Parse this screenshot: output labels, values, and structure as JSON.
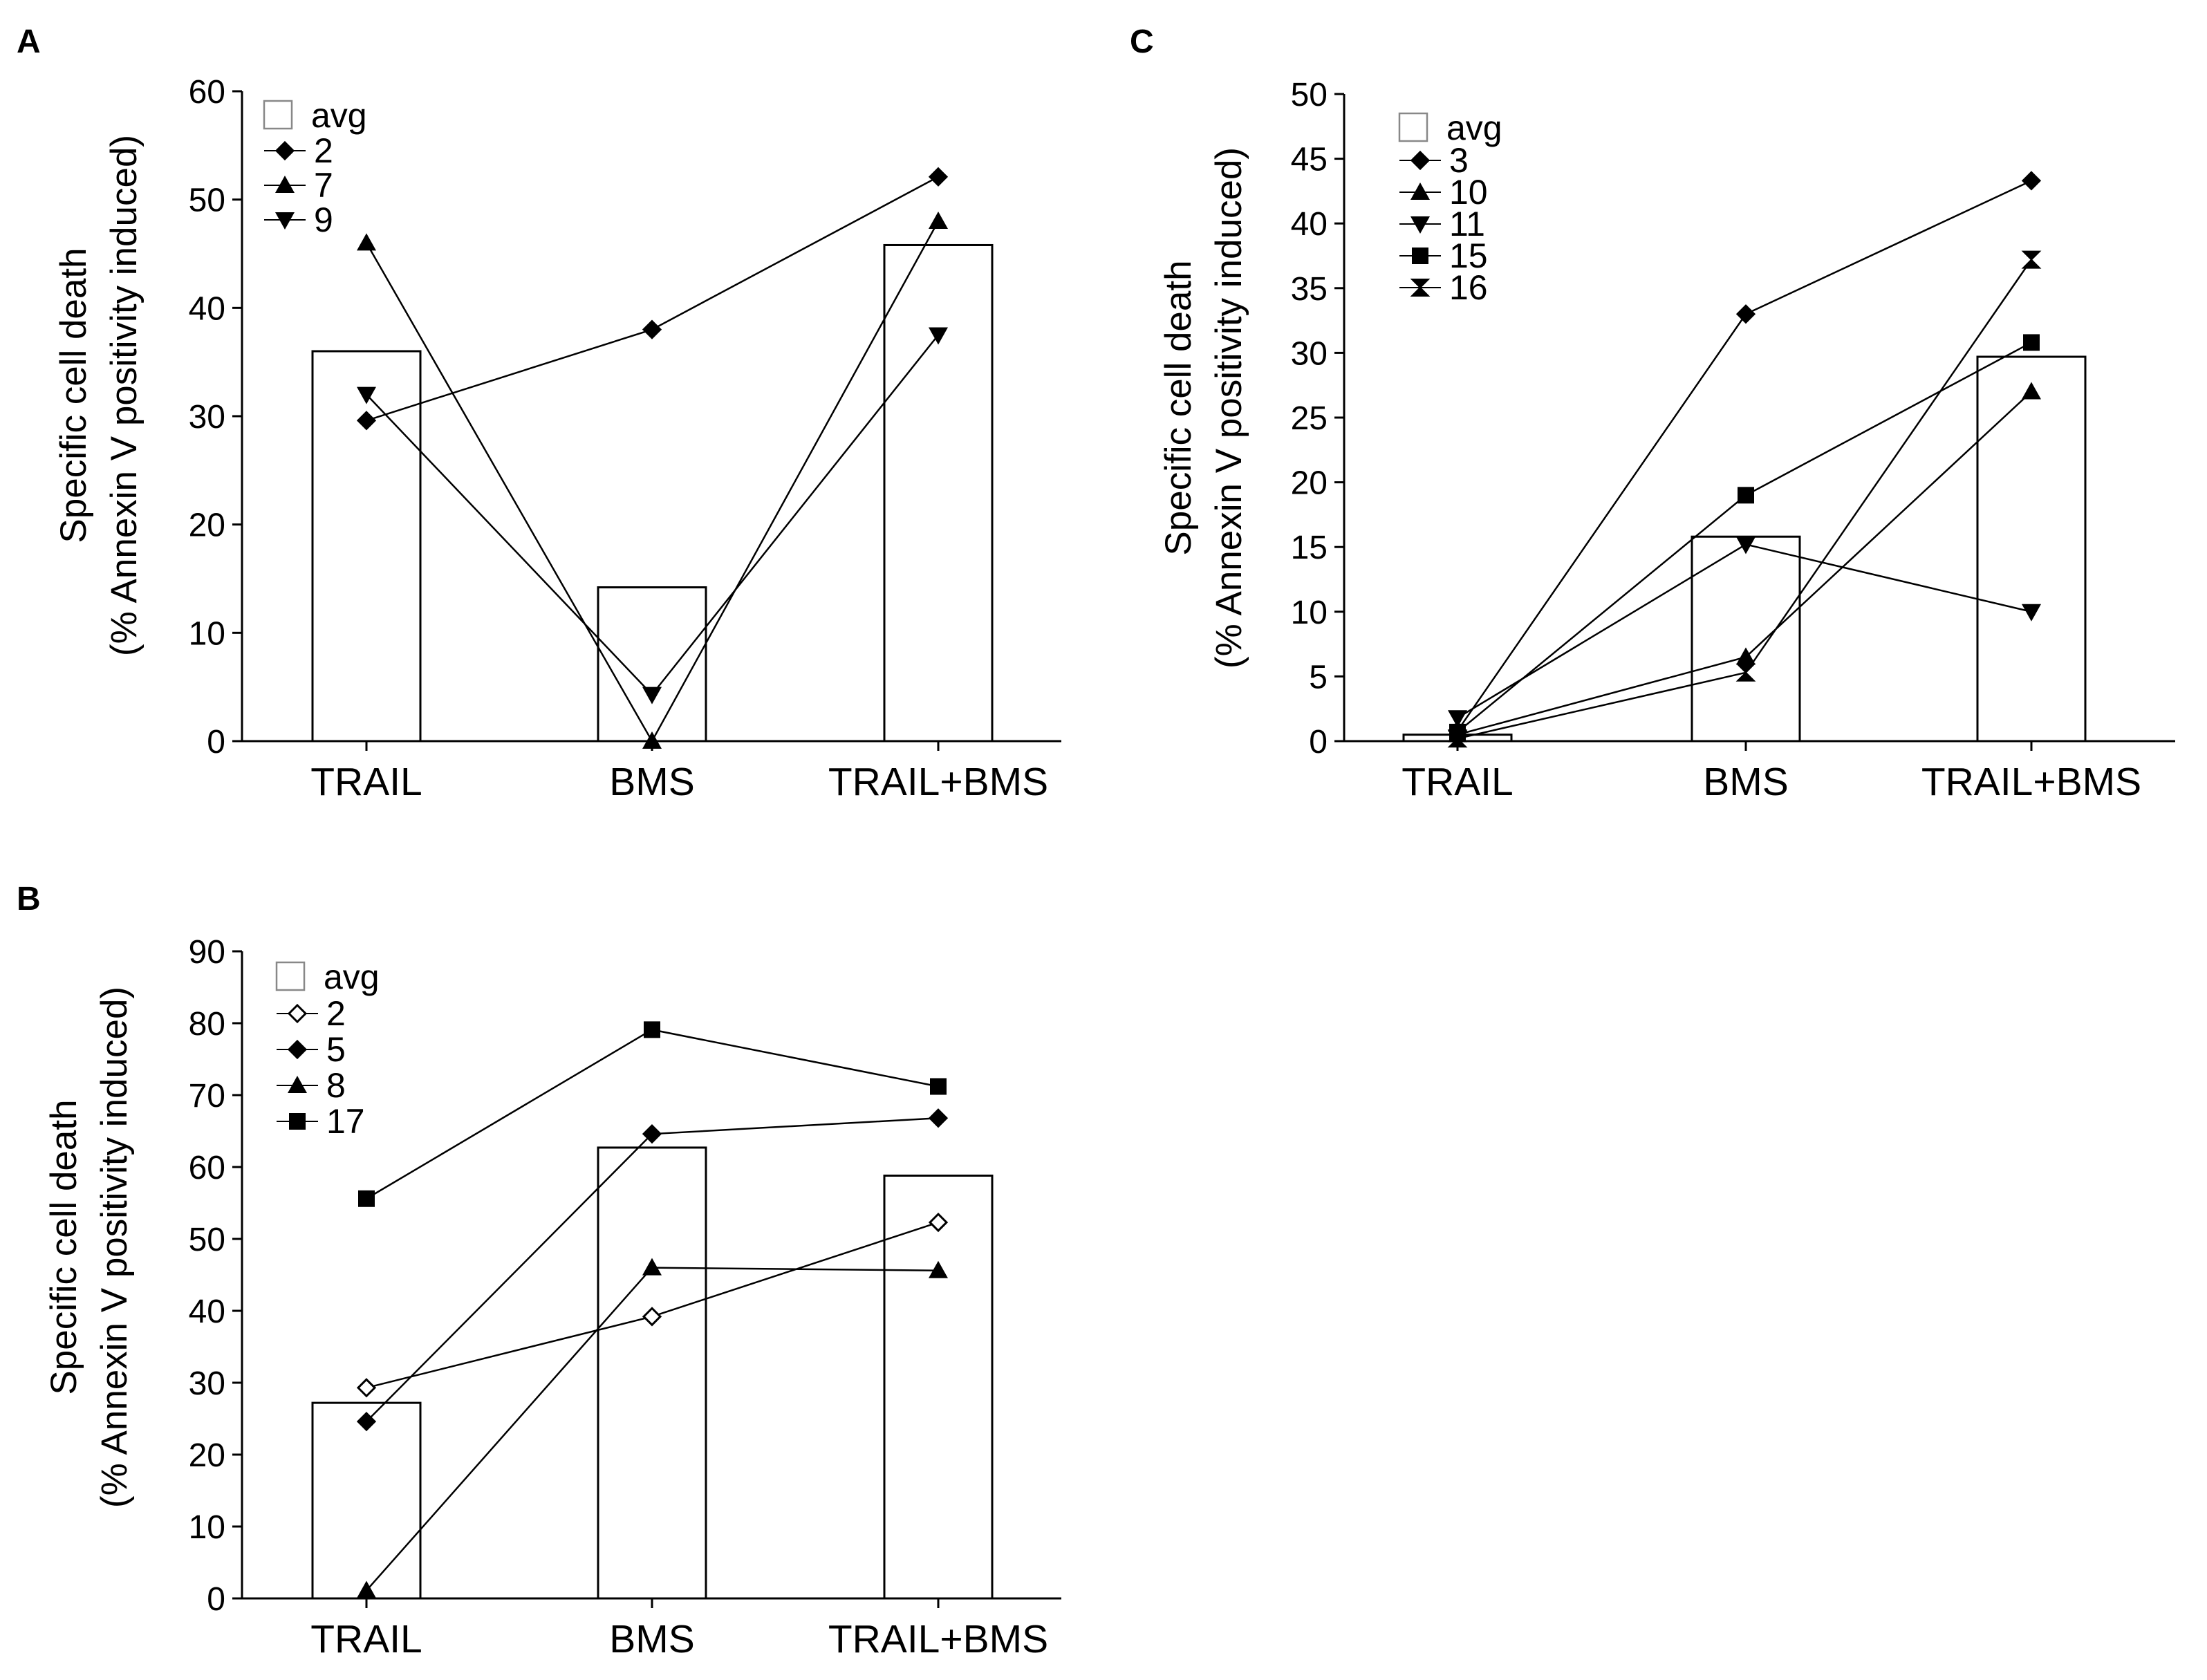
{
  "chart_data": [
    {
      "panel": "A",
      "type": "bar",
      "categories": [
        "TRAIL",
        "BMS",
        "TRAIL+BMS"
      ],
      "ylabel_line1": "Specific cell death",
      "ylabel_line2": "(% Annexin V positivity induced)",
      "ylim": [
        0,
        60
      ],
      "yticks": [
        0,
        10,
        20,
        30,
        40,
        50,
        60
      ],
      "avg": {
        "name": "avg",
        "values": [
          36,
          14.2,
          45.8
        ]
      },
      "series": [
        {
          "name": "2",
          "marker": "diamond",
          "values": [
            29.6,
            38,
            52.1
          ]
        },
        {
          "name": "7",
          "marker": "triangle-up",
          "values": [
            46,
            0,
            48
          ]
        },
        {
          "name": "9",
          "marker": "triangle-down",
          "values": [
            32,
            4.3,
            37.5
          ]
        }
      ]
    },
    {
      "panel": "B",
      "type": "bar",
      "categories": [
        "TRAIL",
        "BMS",
        "TRAIL+BMS"
      ],
      "ylabel_line1": "Specific cell death",
      "ylabel_line2": "(% Annexin V positivity induced)",
      "ylim": [
        0,
        90
      ],
      "yticks": [
        0,
        10,
        20,
        30,
        40,
        50,
        60,
        70,
        80,
        90
      ],
      "avg": {
        "name": "avg",
        "values": [
          27.2,
          62.7,
          58.8
        ]
      },
      "series": [
        {
          "name": "2",
          "marker": "diamond-open",
          "values": [
            29.3,
            39.2,
            52.3
          ]
        },
        {
          "name": "5",
          "marker": "diamond",
          "values": [
            24.6,
            64.6,
            66.8
          ]
        },
        {
          "name": "8",
          "marker": "triangle-up",
          "values": [
            1.1,
            46,
            45.6
          ]
        },
        {
          "name": "17",
          "marker": "square",
          "values": [
            55.6,
            79.1,
            71.2
          ]
        }
      ]
    },
    {
      "panel": "C",
      "type": "bar",
      "categories": [
        "TRAIL",
        "BMS",
        "TRAIL+BMS"
      ],
      "ylabel_line1": "Specific cell death",
      "ylabel_line2": "(% Annexin V positivity induced)",
      "ylim": [
        0,
        50
      ],
      "yticks": [
        0,
        5,
        10,
        15,
        20,
        25,
        30,
        35,
        40,
        45,
        50
      ],
      "avg": {
        "name": "avg",
        "values": [
          0.5,
          15.8,
          29.7
        ]
      },
      "series": [
        {
          "name": "3",
          "marker": "diamond",
          "values": [
            0.8,
            33,
            43.3
          ]
        },
        {
          "name": "10",
          "marker": "triangle-up",
          "values": [
            0.5,
            6.5,
            27
          ]
        },
        {
          "name": "11",
          "marker": "triangle-down",
          "values": [
            1.8,
            15.2,
            10
          ]
        },
        {
          "name": "15",
          "marker": "square",
          "values": [
            0.7,
            19,
            30.8
          ]
        },
        {
          "name": "16",
          "marker": "hourglass",
          "values": [
            0.2,
            5.3,
            37.2
          ]
        }
      ]
    }
  ]
}
